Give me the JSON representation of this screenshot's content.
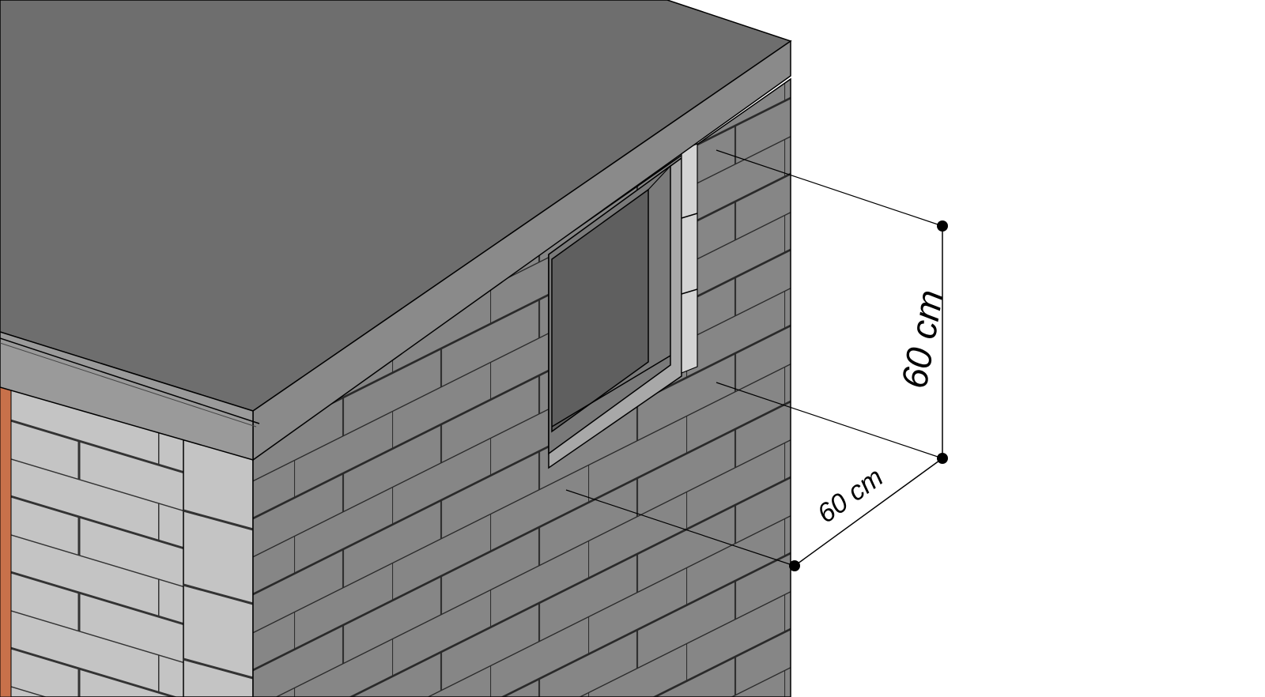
{
  "dimensions": {
    "vertical_label": "60 cm",
    "horizontal_label": "60 cm"
  },
  "colors": {
    "roof_top": "#6e6e6e",
    "roof_edge": "#8a8a8a",
    "wall_light": "#c4c4c4",
    "wall_dark": "#868686",
    "window_glass": "#5f5f5f",
    "accent_wood": "#c8714a",
    "line": "#000000"
  }
}
